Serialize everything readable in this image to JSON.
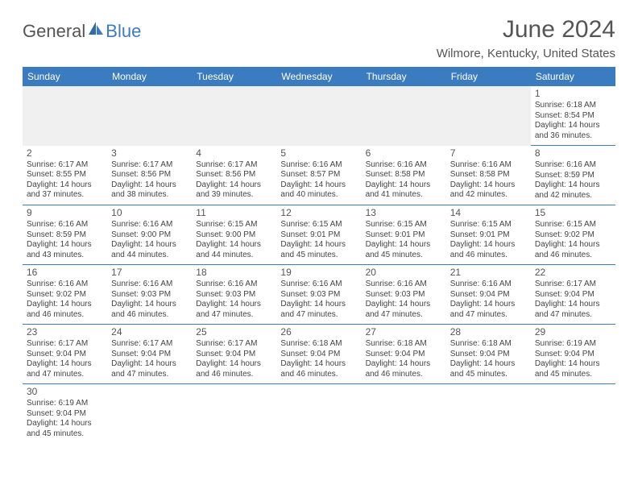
{
  "brand": {
    "part1": "General",
    "part2": "Blue"
  },
  "title": "June 2024",
  "location": "Wilmore, Kentucky, United States",
  "colors": {
    "header_bg": "#3b7bbf",
    "header_text": "#ffffff",
    "body_text": "#444444",
    "title_text": "#555555",
    "rule": "#3b7bbf",
    "empty_bg": "#f0f0f0"
  },
  "weekdays": [
    "Sunday",
    "Monday",
    "Tuesday",
    "Wednesday",
    "Thursday",
    "Friday",
    "Saturday"
  ],
  "days": {
    "1": {
      "sunrise": "6:18 AM",
      "sunset": "8:54 PM",
      "daylight": "14 hours and 36 minutes."
    },
    "2": {
      "sunrise": "6:17 AM",
      "sunset": "8:55 PM",
      "daylight": "14 hours and 37 minutes."
    },
    "3": {
      "sunrise": "6:17 AM",
      "sunset": "8:56 PM",
      "daylight": "14 hours and 38 minutes."
    },
    "4": {
      "sunrise": "6:17 AM",
      "sunset": "8:56 PM",
      "daylight": "14 hours and 39 minutes."
    },
    "5": {
      "sunrise": "6:16 AM",
      "sunset": "8:57 PM",
      "daylight": "14 hours and 40 minutes."
    },
    "6": {
      "sunrise": "6:16 AM",
      "sunset": "8:58 PM",
      "daylight": "14 hours and 41 minutes."
    },
    "7": {
      "sunrise": "6:16 AM",
      "sunset": "8:58 PM",
      "daylight": "14 hours and 42 minutes."
    },
    "8": {
      "sunrise": "6:16 AM",
      "sunset": "8:59 PM",
      "daylight": "14 hours and 42 minutes."
    },
    "9": {
      "sunrise": "6:16 AM",
      "sunset": "8:59 PM",
      "daylight": "14 hours and 43 minutes."
    },
    "10": {
      "sunrise": "6:16 AM",
      "sunset": "9:00 PM",
      "daylight": "14 hours and 44 minutes."
    },
    "11": {
      "sunrise": "6:15 AM",
      "sunset": "9:00 PM",
      "daylight": "14 hours and 44 minutes."
    },
    "12": {
      "sunrise": "6:15 AM",
      "sunset": "9:01 PM",
      "daylight": "14 hours and 45 minutes."
    },
    "13": {
      "sunrise": "6:15 AM",
      "sunset": "9:01 PM",
      "daylight": "14 hours and 45 minutes."
    },
    "14": {
      "sunrise": "6:15 AM",
      "sunset": "9:01 PM",
      "daylight": "14 hours and 46 minutes."
    },
    "15": {
      "sunrise": "6:15 AM",
      "sunset": "9:02 PM",
      "daylight": "14 hours and 46 minutes."
    },
    "16": {
      "sunrise": "6:16 AM",
      "sunset": "9:02 PM",
      "daylight": "14 hours and 46 minutes."
    },
    "17": {
      "sunrise": "6:16 AM",
      "sunset": "9:03 PM",
      "daylight": "14 hours and 46 minutes."
    },
    "18": {
      "sunrise": "6:16 AM",
      "sunset": "9:03 PM",
      "daylight": "14 hours and 47 minutes."
    },
    "19": {
      "sunrise": "6:16 AM",
      "sunset": "9:03 PM",
      "daylight": "14 hours and 47 minutes."
    },
    "20": {
      "sunrise": "6:16 AM",
      "sunset": "9:03 PM",
      "daylight": "14 hours and 47 minutes."
    },
    "21": {
      "sunrise": "6:16 AM",
      "sunset": "9:04 PM",
      "daylight": "14 hours and 47 minutes."
    },
    "22": {
      "sunrise": "6:17 AM",
      "sunset": "9:04 PM",
      "daylight": "14 hours and 47 minutes."
    },
    "23": {
      "sunrise": "6:17 AM",
      "sunset": "9:04 PM",
      "daylight": "14 hours and 47 minutes."
    },
    "24": {
      "sunrise": "6:17 AM",
      "sunset": "9:04 PM",
      "daylight": "14 hours and 47 minutes."
    },
    "25": {
      "sunrise": "6:17 AM",
      "sunset": "9:04 PM",
      "daylight": "14 hours and 46 minutes."
    },
    "26": {
      "sunrise": "6:18 AM",
      "sunset": "9:04 PM",
      "daylight": "14 hours and 46 minutes."
    },
    "27": {
      "sunrise": "6:18 AM",
      "sunset": "9:04 PM",
      "daylight": "14 hours and 46 minutes."
    },
    "28": {
      "sunrise": "6:18 AM",
      "sunset": "9:04 PM",
      "daylight": "14 hours and 45 minutes."
    },
    "29": {
      "sunrise": "6:19 AM",
      "sunset": "9:04 PM",
      "daylight": "14 hours and 45 minutes."
    },
    "30": {
      "sunrise": "6:19 AM",
      "sunset": "9:04 PM",
      "daylight": "14 hours and 45 minutes."
    }
  },
  "grid": [
    [
      null,
      null,
      null,
      null,
      null,
      null,
      "1"
    ],
    [
      "2",
      "3",
      "4",
      "5",
      "6",
      "7",
      "8"
    ],
    [
      "9",
      "10",
      "11",
      "12",
      "13",
      "14",
      "15"
    ],
    [
      "16",
      "17",
      "18",
      "19",
      "20",
      "21",
      "22"
    ],
    [
      "23",
      "24",
      "25",
      "26",
      "27",
      "28",
      "29"
    ],
    [
      "30",
      null,
      null,
      null,
      null,
      null,
      null
    ]
  ],
  "labels": {
    "sunrise": "Sunrise: ",
    "sunset": "Sunset: ",
    "daylight": "Daylight: "
  }
}
